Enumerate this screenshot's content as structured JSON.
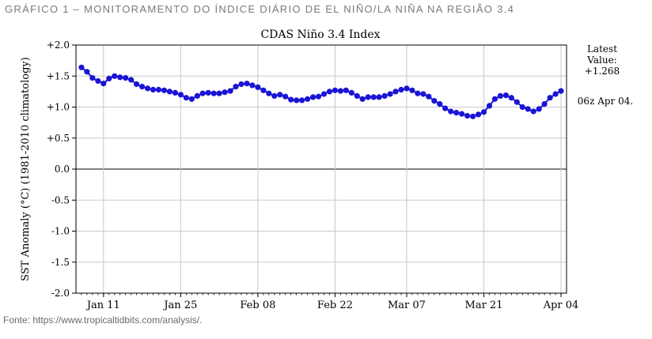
{
  "caption": "GRÁFICO 1 – MONITORAMENTO DO ÍNDICE DIÁRIO DE EL NIÑO/LA NIÑA NA REGIÃO 3.4",
  "source": "Fonte: https://www.tropicaltidbits.com/analysis/.",
  "colors": {
    "series": "#1a14d6",
    "grid": "#c8c8c8",
    "axis": "#000000"
  },
  "chart_data": {
    "type": "line",
    "title": "CDAS Niño 3.4 Index",
    "ylabel": "SST Anomaly (°C) (1981-2010 climatology)",
    "xlabel": "",
    "ylim": [
      -2.0,
      2.0
    ],
    "yticks": [
      {
        "value": 2.0,
        "label": "+2.0"
      },
      {
        "value": 1.5,
        "label": "+1.5"
      },
      {
        "value": 1.0,
        "label": "+1.0"
      },
      {
        "value": 0.5,
        "label": "+0.5"
      },
      {
        "value": 0.0,
        "label": "0.0"
      },
      {
        "value": -0.5,
        "label": "-0.5"
      },
      {
        "value": -1.0,
        "label": "-1.0"
      },
      {
        "value": -1.5,
        "label": "-1.5"
      },
      {
        "value": -2.0,
        "label": "-2.0"
      }
    ],
    "xrange": [
      "Jan 06",
      "Apr 05"
    ],
    "xticks": [
      {
        "date": "Jan 11",
        "label": "Jan 11"
      },
      {
        "date": "Jan 25",
        "label": "Jan 25"
      },
      {
        "date": "Feb 08",
        "label": "Feb 08"
      },
      {
        "date": "Feb 22",
        "label": "Feb 22"
      },
      {
        "date": "Mar 07",
        "label": "Mar 07"
      },
      {
        "date": "Mar 21",
        "label": "Mar 21"
      },
      {
        "date": "Apr 04",
        "label": "Apr 04"
      }
    ],
    "grid": true,
    "annotation": {
      "latest_label": "Latest",
      "value_label": "Value:",
      "value": "+1.268",
      "time": "06z Apr 04."
    },
    "series": [
      {
        "x": [
          "Jan 07",
          "Jan 08",
          "Jan 09",
          "Jan 10",
          "Jan 11",
          "Jan 12",
          "Jan 13",
          "Jan 14",
          "Jan 15",
          "Jan 16",
          "Jan 17",
          "Jan 18",
          "Jan 19",
          "Jan 20",
          "Jan 21",
          "Jan 22",
          "Jan 23",
          "Jan 24",
          "Jan 25",
          "Jan 26",
          "Jan 27",
          "Jan 28",
          "Jan 29",
          "Jan 30",
          "Jan 31",
          "Feb 01",
          "Feb 02",
          "Feb 03",
          "Feb 04",
          "Feb 05",
          "Feb 06",
          "Feb 07",
          "Feb 08",
          "Feb 09",
          "Feb 10",
          "Feb 11",
          "Feb 12",
          "Feb 13",
          "Feb 14",
          "Feb 15",
          "Feb 16",
          "Feb 17",
          "Feb 18",
          "Feb 19",
          "Feb 20",
          "Feb 21",
          "Feb 22",
          "Feb 23",
          "Feb 24",
          "Feb 25",
          "Feb 26",
          "Feb 27",
          "Feb 28",
          "Mar 01",
          "Mar 02",
          "Mar 03",
          "Mar 04",
          "Mar 05",
          "Mar 06",
          "Mar 07",
          "Mar 08",
          "Mar 09",
          "Mar 10",
          "Mar 11",
          "Mar 12",
          "Mar 13",
          "Mar 14",
          "Mar 15",
          "Mar 16",
          "Mar 17",
          "Mar 18",
          "Mar 19",
          "Mar 20",
          "Mar 21",
          "Mar 22",
          "Mar 23",
          "Mar 24",
          "Mar 25",
          "Mar 26",
          "Mar 27",
          "Mar 28",
          "Mar 29",
          "Mar 30",
          "Mar 31",
          "Apr 01",
          "Apr 02",
          "Apr 03",
          "Apr 04"
        ],
        "values": [
          1.64,
          1.57,
          1.47,
          1.42,
          1.38,
          1.46,
          1.5,
          1.48,
          1.47,
          1.44,
          1.37,
          1.33,
          1.3,
          1.28,
          1.28,
          1.27,
          1.25,
          1.23,
          1.2,
          1.15,
          1.13,
          1.18,
          1.22,
          1.23,
          1.22,
          1.22,
          1.24,
          1.26,
          1.33,
          1.37,
          1.38,
          1.35,
          1.32,
          1.27,
          1.22,
          1.18,
          1.2,
          1.17,
          1.12,
          1.11,
          1.11,
          1.13,
          1.16,
          1.17,
          1.21,
          1.25,
          1.27,
          1.26,
          1.27,
          1.23,
          1.18,
          1.13,
          1.16,
          1.16,
          1.16,
          1.18,
          1.21,
          1.25,
          1.28,
          1.3,
          1.27,
          1.22,
          1.21,
          1.17,
          1.1,
          1.05,
          0.98,
          0.93,
          0.91,
          0.89,
          0.86,
          0.85,
          0.88,
          0.92,
          1.02,
          1.13,
          1.18,
          1.19,
          1.15,
          1.08,
          1.0,
          0.97,
          0.93,
          0.97,
          1.05,
          1.15,
          1.21,
          1.26
        ]
      }
    ]
  }
}
